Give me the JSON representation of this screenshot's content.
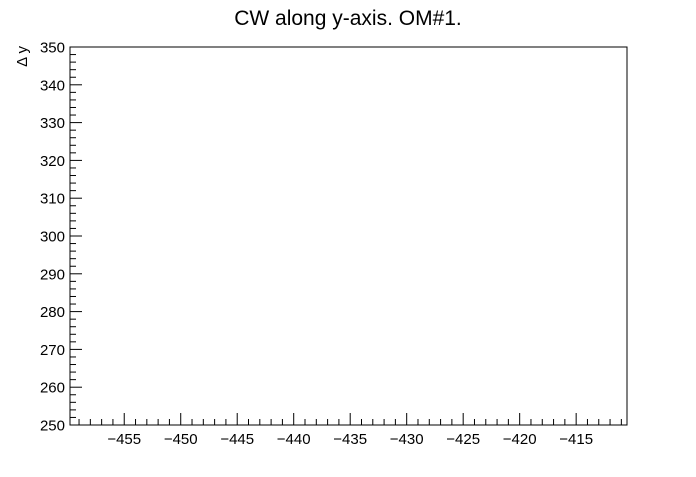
{
  "chart_data": {
    "type": "scatter",
    "title": "CW along y-axis. OM#1.",
    "xlabel": "",
    "ylabel": "Δ y",
    "xlim": [
      -459.8,
      -410.5
    ],
    "ylim": [
      250,
      350
    ],
    "x_ticks": [
      -455,
      -450,
      -445,
      -440,
      -435,
      -430,
      -425,
      -420,
      -415
    ],
    "x_tick_labels": [
      "−455",
      "−450",
      "−445",
      "−440",
      "−435",
      "−430",
      "−425",
      "−420",
      "−415"
    ],
    "y_ticks": [
      250,
      260,
      270,
      280,
      290,
      300,
      310,
      320,
      330,
      340,
      350
    ],
    "y_tick_labels": [
      "250",
      "260",
      "270",
      "280",
      "290",
      "300",
      "310",
      "320",
      "330",
      "340",
      "350"
    ],
    "x_minor_step": 1,
    "y_minor_step": 2,
    "grid": false,
    "legend": "none",
    "series": [],
    "colors": {
      "frame": "#000000",
      "background": "#ffffff"
    }
  }
}
